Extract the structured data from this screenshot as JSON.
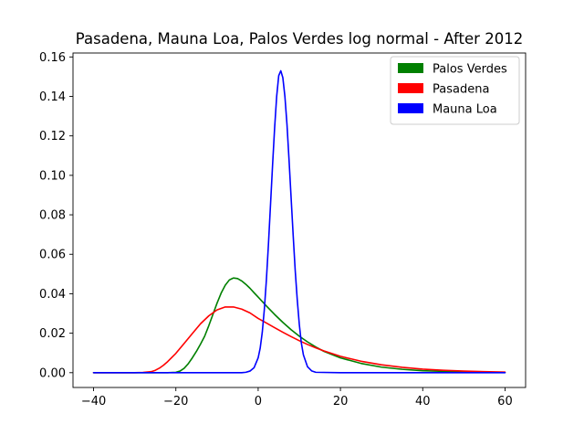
{
  "chart_data": {
    "type": "line",
    "title": "Pasadena, Mauna Loa, Palos Verdes log normal - After 2012",
    "xlabel": "",
    "ylabel": "",
    "xlim": [
      -45,
      65
    ],
    "ylim": [
      -0.0075,
      0.162
    ],
    "xticks": [
      -40,
      -20,
      0,
      20,
      40,
      60
    ],
    "yticks": [
      0.0,
      0.02,
      0.04,
      0.06,
      0.08,
      0.1,
      0.12,
      0.14,
      0.16
    ],
    "xtick_labels": [
      "−40",
      "−20",
      "0",
      "20",
      "40",
      "60"
    ],
    "ytick_labels": [
      "0.00",
      "0.02",
      "0.04",
      "0.06",
      "0.08",
      "0.10",
      "0.12",
      "0.14",
      "0.16"
    ],
    "grid": false,
    "legend_position": "top-right",
    "series": [
      {
        "name": "Palos Verdes",
        "color": "#008000",
        "x": [
          -40,
          -22,
          -20,
          -19,
          -18,
          -17,
          -16,
          -15,
          -14,
          -13,
          -12,
          -11,
          -10,
          -9,
          -8,
          -7,
          -6,
          -5,
          -4,
          -3,
          -2,
          -1,
          0,
          2,
          4,
          6,
          8,
          10,
          12,
          14,
          16,
          20,
          25,
          30,
          35,
          40,
          50,
          60
        ],
        "y": [
          0,
          0,
          0.0002,
          0.0008,
          0.0022,
          0.0045,
          0.0075,
          0.0108,
          0.0145,
          0.0185,
          0.0238,
          0.0295,
          0.0352,
          0.0403,
          0.0443,
          0.047,
          0.048,
          0.0477,
          0.0465,
          0.0448,
          0.0428,
          0.0405,
          0.0383,
          0.0338,
          0.0295,
          0.0255,
          0.0218,
          0.0185,
          0.0156,
          0.013,
          0.0108,
          0.0075,
          0.0047,
          0.0028,
          0.0017,
          0.001,
          0.0004,
          0.0001
        ]
      },
      {
        "name": "Pasadena",
        "color": "#ff0000",
        "x": [
          -40,
          -30,
          -28,
          -26,
          -25,
          -24,
          -23,
          -22,
          -20,
          -18,
          -16,
          -14,
          -12,
          -10,
          -8,
          -6,
          -4,
          -2,
          0,
          2,
          4,
          6,
          8,
          10,
          12,
          14,
          16,
          20,
          25,
          30,
          35,
          40,
          45,
          50,
          55,
          60
        ],
        "y": [
          0,
          0,
          0.0001,
          0.0005,
          0.0012,
          0.0023,
          0.0038,
          0.0056,
          0.0098,
          0.0148,
          0.0198,
          0.0248,
          0.0288,
          0.0318,
          0.0333,
          0.0333,
          0.0322,
          0.0303,
          0.0275,
          0.0252,
          0.0228,
          0.0205,
          0.0183,
          0.0162,
          0.0143,
          0.0126,
          0.011,
          0.0083,
          0.0058,
          0.004,
          0.0027,
          0.0018,
          0.0012,
          0.0008,
          0.0005,
          0.0003
        ]
      },
      {
        "name": "Mauna Loa",
        "color": "#0000ff",
        "x": [
          -40,
          -4,
          -3,
          -2,
          -1,
          0,
          0.5,
          1,
          1.5,
          2,
          2.5,
          3,
          3.5,
          4,
          4.5,
          5,
          5.5,
          6,
          6.5,
          7,
          7.5,
          8,
          8.5,
          9,
          9.5,
          10,
          10.5,
          11,
          12,
          13,
          14,
          20,
          60
        ],
        "y": [
          0,
          0,
          0.0002,
          0.0008,
          0.0025,
          0.0075,
          0.0125,
          0.0205,
          0.032,
          0.047,
          0.065,
          0.085,
          0.105,
          0.124,
          0.14,
          0.1505,
          0.153,
          0.1495,
          0.14,
          0.126,
          0.108,
          0.089,
          0.07,
          0.052,
          0.037,
          0.0245,
          0.015,
          0.009,
          0.003,
          0.0009,
          0.0002,
          0,
          0
        ]
      }
    ]
  }
}
